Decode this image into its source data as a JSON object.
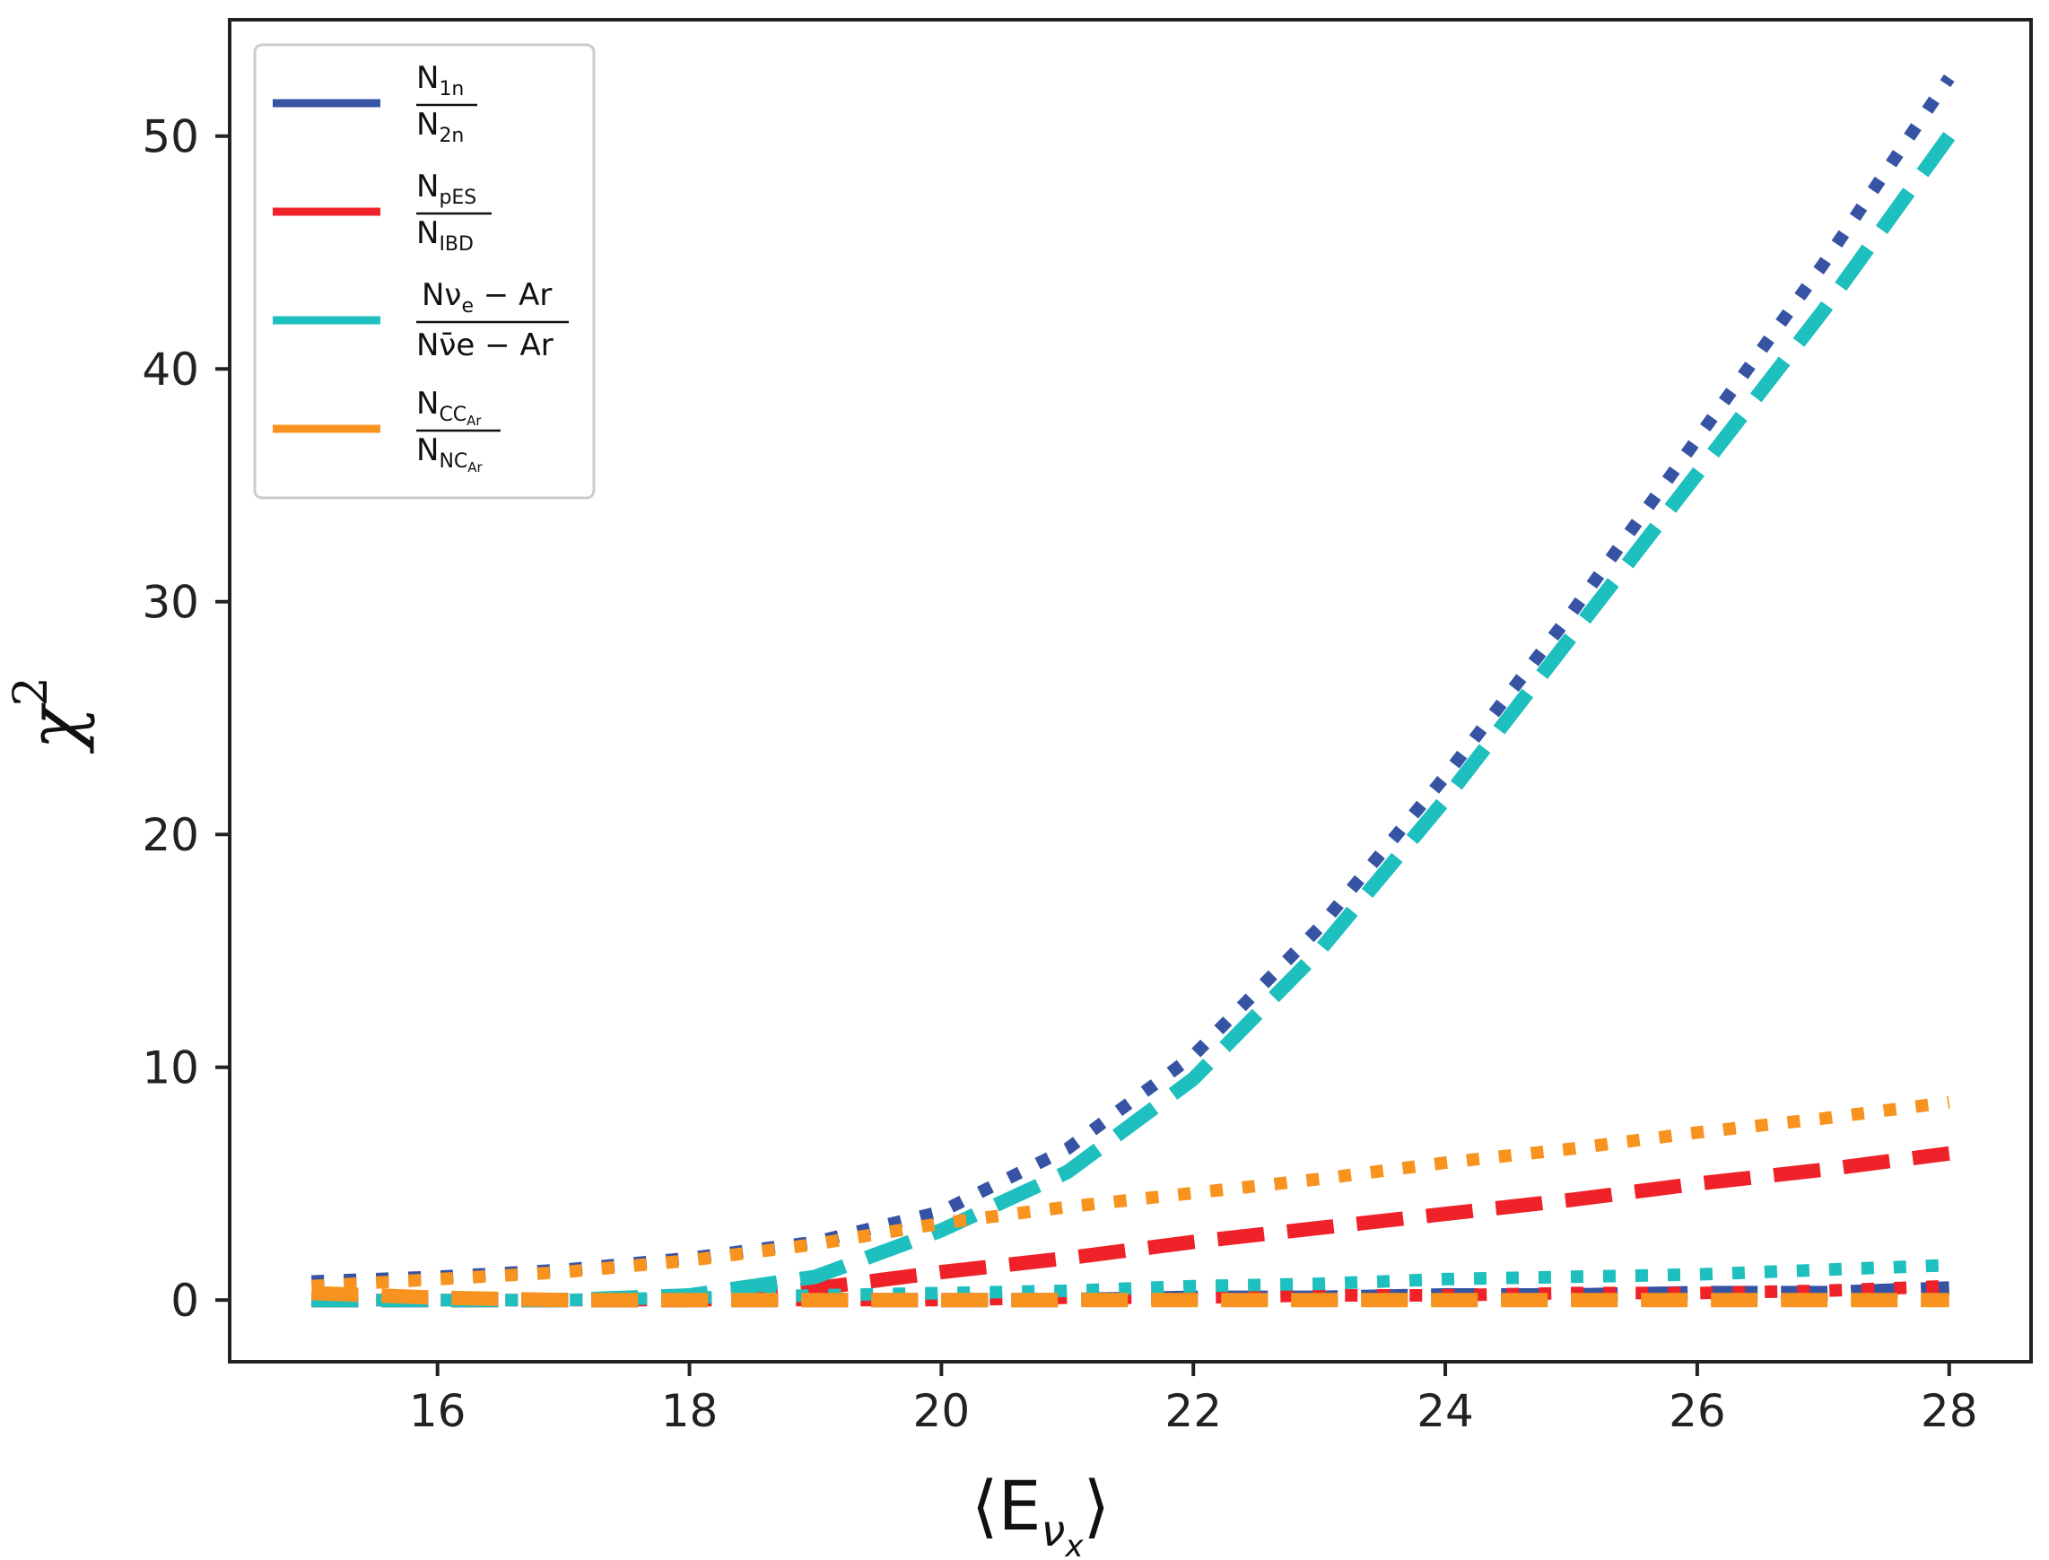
{
  "chart_data": {
    "type": "line",
    "title": "",
    "xlabel": "⟨E",
    "xlabel_sub": "ν",
    "xlabel_subsub": "x",
    "xlabel_close": "⟩",
    "ylabel": "χ",
    "ylabel_sup": "2",
    "xlim": [
      14.35,
      28.65
    ],
    "ylim": [
      -2.65,
      55.0
    ],
    "xticks": [
      16,
      18,
      20,
      22,
      24,
      26,
      28
    ],
    "yticks": [
      0,
      10,
      20,
      30,
      40,
      50
    ],
    "legend_position": "top-left",
    "legend": [
      {
        "color": "#3653A4",
        "num": "N",
        "num_sub": "1n",
        "den": "N",
        "den_sub": "2n"
      },
      {
        "color": "#EE2228",
        "num": "N",
        "num_sub": "pES",
        "den": "N",
        "den_sub": "IBD"
      },
      {
        "color": "#1EBFBF",
        "num": "Nν",
        "num_sub": "e",
        "num_tail": " − Ar",
        "den": "Nν̄e − Ar",
        "den_sub": "",
        "den_tail": ""
      },
      {
        "color": "#F7931E",
        "num": "N",
        "num_sub": "CC",
        "num_subsub": "Ar",
        "den": "N",
        "den_sub": "NC",
        "den_subsub": "Ar"
      }
    ],
    "x": [
      15,
      16,
      17,
      18,
      19,
      20,
      21,
      22,
      23,
      24,
      25,
      26,
      27,
      28
    ],
    "series": [
      {
        "name": "N1n/N2n dotted",
        "color": "#3653A4",
        "style": "dotted",
        "values": [
          0.8,
          1.0,
          1.3,
          1.8,
          2.5,
          3.8,
          6.5,
          10.5,
          16.0,
          22.5,
          29.5,
          37.0,
          44.5,
          52.5
        ]
      },
      {
        "name": "N1n/N2n dashed",
        "color": "#3653A4",
        "style": "dashed",
        "values": [
          0.0,
          0.0,
          0.0,
          0.0,
          0.0,
          0.0,
          0.0,
          0.1,
          0.1,
          0.2,
          0.2,
          0.3,
          0.3,
          0.5
        ]
      },
      {
        "name": "NpES/NIBD dashed",
        "color": "#EE2228",
        "style": "dashed",
        "values": [
          0.0,
          0.0,
          0.0,
          0.0,
          0.5,
          1.2,
          1.8,
          2.5,
          3.1,
          3.7,
          4.3,
          5.0,
          5.6,
          6.3
        ]
      },
      {
        "name": "NpES/NIBD dotted",
        "color": "#EE2228",
        "style": "dotted",
        "values": [
          0.0,
          0.0,
          0.0,
          0.0,
          0.0,
          0.0,
          0.1,
          0.1,
          0.2,
          0.2,
          0.3,
          0.3,
          0.4,
          0.6
        ]
      },
      {
        "name": "Nνe-Ar dashed",
        "color": "#1EBFBF",
        "style": "dashed",
        "values": [
          0.0,
          0.0,
          0.0,
          0.2,
          1.0,
          3.0,
          5.5,
          9.5,
          15.0,
          21.5,
          28.5,
          35.5,
          42.5,
          50.0
        ]
      },
      {
        "name": "Nνe-Ar dotted",
        "color": "#1EBFBF",
        "style": "dotted",
        "values": [
          0.0,
          0.0,
          0.0,
          0.1,
          0.2,
          0.3,
          0.4,
          0.6,
          0.7,
          0.9,
          1.0,
          1.1,
          1.3,
          1.5
        ]
      },
      {
        "name": "NCC/NNC dotted",
        "color": "#F7931E",
        "style": "dotted",
        "values": [
          0.6,
          0.9,
          1.2,
          1.7,
          2.4,
          3.3,
          4.0,
          4.6,
          5.2,
          5.9,
          6.5,
          7.2,
          7.8,
          8.5
        ]
      },
      {
        "name": "NCC/NNC dashed",
        "color": "#F7931E",
        "style": "dashed",
        "values": [
          0.3,
          0.1,
          0.0,
          0.0,
          0.0,
          0.0,
          0.0,
          0.0,
          0.0,
          0.0,
          0.0,
          0.0,
          0.0,
          0.0
        ]
      }
    ]
  }
}
